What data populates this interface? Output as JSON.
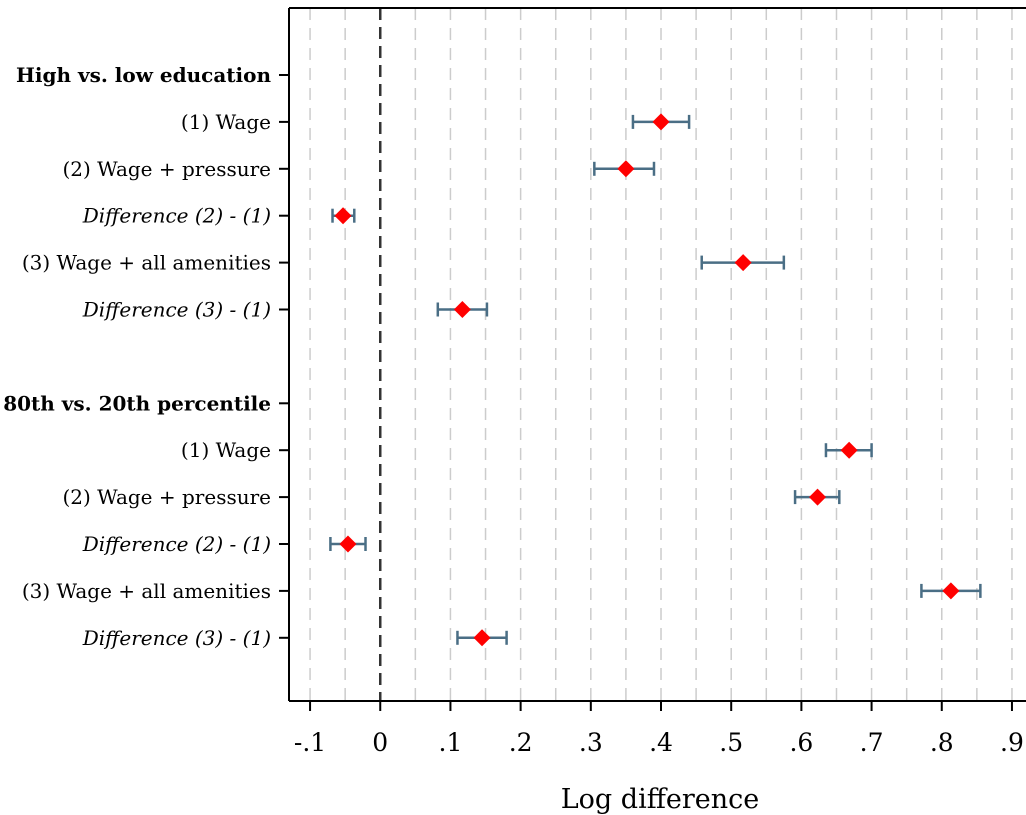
{
  "chart_data": {
    "type": "coefficient-plot",
    "xlabel": "Log difference",
    "xlim": [
      -0.13,
      0.92
    ],
    "x_ticks": [
      {
        "value": -0.1,
        "label": "-.1"
      },
      {
        "value": 0,
        "label": "0"
      },
      {
        "value": 0.1,
        "label": ".1"
      },
      {
        "value": 0.2,
        "label": ".2"
      },
      {
        "value": 0.3,
        "label": ".3"
      },
      {
        "value": 0.4,
        "label": ".4"
      },
      {
        "value": 0.5,
        "label": ".5"
      },
      {
        "value": 0.6,
        "label": ".6"
      },
      {
        "value": 0.7,
        "label": ".7"
      },
      {
        "value": 0.8,
        "label": ".8"
      },
      {
        "value": 0.9,
        "label": ".9"
      }
    ],
    "minor_gridlines": [
      -0.1,
      -0.05,
      0.05,
      0.1,
      0.15,
      0.2,
      0.25,
      0.3,
      0.35,
      0.4,
      0.45,
      0.5,
      0.55,
      0.6,
      0.65,
      0.7,
      0.75,
      0.8,
      0.85,
      0.9
    ],
    "reference_line": 0,
    "marker_color": "#ff0000",
    "ci_color": "#4a6e85",
    "grid_color": "#cccccc",
    "rows": [
      {
        "label": "High vs. low education",
        "style": "header"
      },
      {
        "label": "(1) Wage",
        "style": "normal",
        "estimate": 0.4,
        "ci": [
          0.36,
          0.44
        ]
      },
      {
        "label": "(2) Wage + pressure",
        "style": "normal",
        "estimate": 0.35,
        "ci": [
          0.305,
          0.39
        ]
      },
      {
        "label": "Difference (2) - (1)",
        "style": "italic",
        "estimate": -0.053,
        "ci": [
          -0.068,
          -0.037
        ]
      },
      {
        "label": "(3) Wage + all amenities",
        "style": "normal",
        "estimate": 0.517,
        "ci": [
          0.458,
          0.575
        ]
      },
      {
        "label": "Difference (3) - (1)",
        "style": "italic",
        "estimate": 0.117,
        "ci": [
          0.082,
          0.152
        ]
      },
      {
        "label": "",
        "style": "spacer"
      },
      {
        "label": "80th vs. 20th percentile",
        "style": "header"
      },
      {
        "label": "(1) Wage",
        "style": "normal",
        "estimate": 0.668,
        "ci": [
          0.635,
          0.7
        ]
      },
      {
        "label": "(2) Wage + pressure",
        "style": "normal",
        "estimate": 0.623,
        "ci": [
          0.591,
          0.654
        ]
      },
      {
        "label": "Difference (2) - (1)",
        "style": "italic",
        "estimate": -0.046,
        "ci": [
          -0.071,
          -0.021
        ]
      },
      {
        "label": "(3) Wage + all amenities",
        "style": "normal",
        "estimate": 0.813,
        "ci": [
          0.771,
          0.855
        ]
      },
      {
        "label": "Difference (3) - (1)",
        "style": "italic",
        "estimate": 0.145,
        "ci": [
          0.11,
          0.18
        ]
      }
    ]
  }
}
